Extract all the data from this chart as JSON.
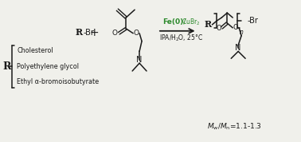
{
  "bg_color": "#f0f0eb",
  "dark_color": "#1a1a1a",
  "green_color": "#2d8a2d",
  "R_list": [
    "Cholesterol",
    "Polyethylene glycol",
    "Ethyl α-bromoisobutyrate"
  ],
  "mw_label": "M_w/M_n=1.1-1.3",
  "figsize": [
    3.78,
    1.78
  ],
  "dpi": 100
}
